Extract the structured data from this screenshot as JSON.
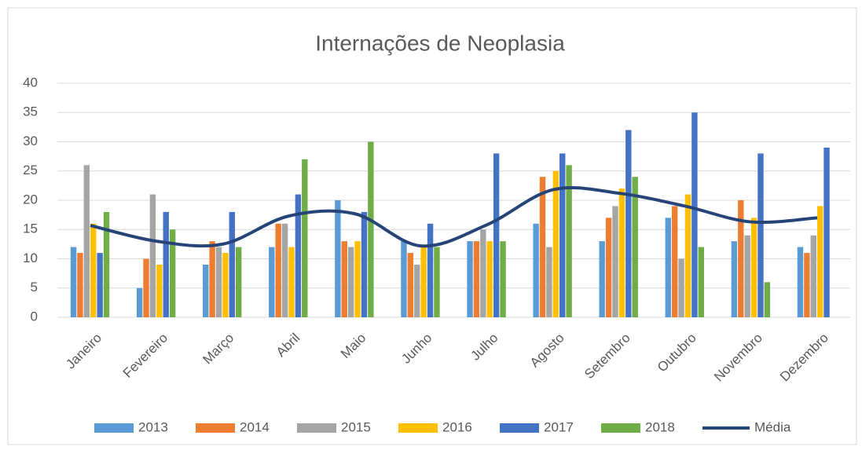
{
  "chart_data": {
    "type": "bar",
    "title": "Internações de Neoplasia",
    "categories": [
      "Janeiro",
      "Fevereiro",
      "Março",
      "Abril",
      "Maio",
      "Junho",
      "Julho",
      "Agosto",
      "Setembro",
      "Outubro",
      "Novembro",
      "Dezembro"
    ],
    "series": [
      {
        "name": "2013",
        "color": "#5b9bd5",
        "values": [
          12,
          5,
          9,
          12,
          20,
          13,
          13,
          16,
          13,
          17,
          13,
          12
        ]
      },
      {
        "name": "2014",
        "color": "#ed7d31",
        "values": [
          11,
          10,
          13,
          16,
          13,
          11,
          13,
          24,
          17,
          19,
          20,
          11
        ]
      },
      {
        "name": "2015",
        "color": "#a5a5a5",
        "values": [
          26,
          21,
          12,
          16,
          12,
          9,
          15,
          12,
          19,
          10,
          14,
          14
        ]
      },
      {
        "name": "2016",
        "color": "#ffc000",
        "values": [
          16,
          9,
          11,
          12,
          13,
          12,
          13,
          25,
          22,
          21,
          17,
          19
        ]
      },
      {
        "name": "2017",
        "color": "#4472c4",
        "values": [
          11,
          18,
          18,
          21,
          18,
          16,
          28,
          28,
          32,
          35,
          28,
          29
        ]
      },
      {
        "name": "2018",
        "color": "#70ad47",
        "values": [
          18,
          15,
          12,
          27,
          30,
          12,
          13,
          26,
          24,
          12,
          6,
          null
        ]
      },
      {
        "name": "Média",
        "color": "#264478",
        "type": "line",
        "values": [
          15.7,
          13,
          12.5,
          17.3,
          17.7,
          12.2,
          15.8,
          21.8,
          21.2,
          19,
          16.3,
          17
        ]
      }
    ],
    "ylim": [
      0,
      40
    ],
    "yticks": [
      0,
      5,
      10,
      15,
      20,
      25,
      30,
      35,
      40
    ],
    "grid": true,
    "legend": "bottom"
  }
}
